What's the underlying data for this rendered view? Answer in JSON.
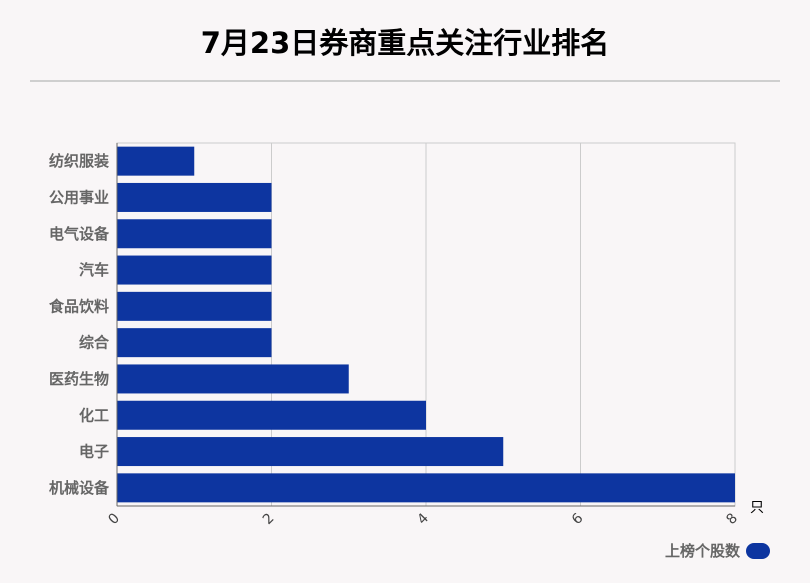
{
  "title": "7月23日券商重点关注行业排名",
  "chart_data": {
    "type": "bar",
    "orientation": "horizontal",
    "categories": [
      "纺织服装",
      "公用事业",
      "电气设备",
      "汽车",
      "食品饮料",
      "综合",
      "医药生物",
      "化工",
      "电子",
      "机械设备"
    ],
    "series": [
      {
        "name": "上榜个股数",
        "color": "#0d35a0",
        "values": [
          1,
          2,
          2,
          2,
          2,
          2,
          3,
          4,
          5,
          8
        ]
      }
    ],
    "xlim": [
      0,
      8
    ],
    "xticks": [
      0,
      2,
      4,
      6,
      8
    ],
    "xunit": "只",
    "grid": true,
    "legend_position": "bottom-right"
  }
}
